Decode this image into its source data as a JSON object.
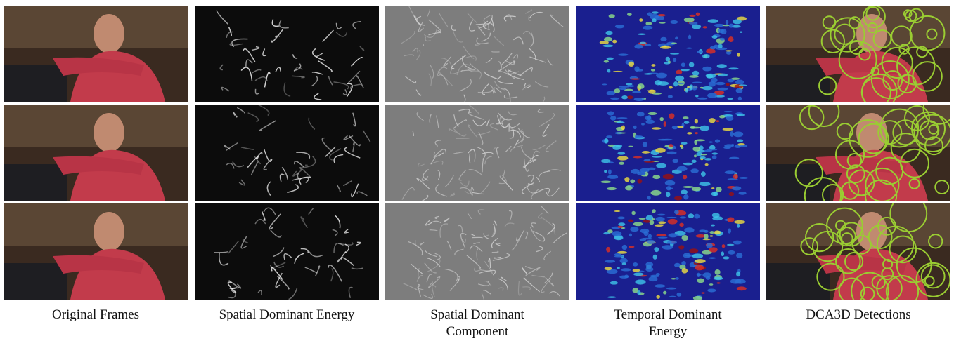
{
  "figure": {
    "columns": [
      {
        "caption": "Original Frames"
      },
      {
        "caption": "Spatial Dominant Energy"
      },
      {
        "caption": "Spatial Dominant Component"
      },
      {
        "caption": "Temporal Dominant Energy"
      },
      {
        "caption": "DCA3D Detections"
      }
    ]
  }
}
